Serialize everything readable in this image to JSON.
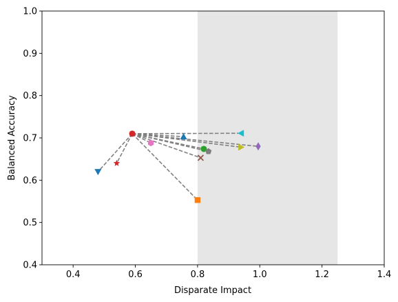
{
  "chart_data": {
    "type": "scatter",
    "title": "",
    "xlabel": "Disparate Impact",
    "ylabel": "Balanced Accuracy",
    "xlim": [
      0.3,
      1.4
    ],
    "ylim": [
      0.4,
      1.0
    ],
    "x_ticks": [
      0.4,
      0.6,
      0.8,
      1.0,
      1.2,
      1.4
    ],
    "x_tick_labels": [
      "0.4",
      "0.6",
      "0.8",
      "1.0",
      "1.2",
      "1.4"
    ],
    "y_ticks": [
      0.4,
      0.5,
      0.6,
      0.7,
      0.8,
      0.9,
      1.0
    ],
    "y_tick_labels": [
      "0.4",
      "0.5",
      "0.6",
      "0.7",
      "0.8",
      "0.9",
      "1.0"
    ],
    "grid": false,
    "legend": "none",
    "shaded_region": {
      "x": [
        0.8,
        1.25
      ],
      "color": "#e6e6e6"
    },
    "origin": {
      "x": 0.59,
      "y": 0.71,
      "color": "#d62728",
      "marker": "circle"
    },
    "connector_style": {
      "color": "#808080",
      "dash": "dashed"
    },
    "points": [
      {
        "x": 0.48,
        "y": 0.62,
        "marker": "triangle-down",
        "color": "#1f77b4"
      },
      {
        "x": 0.8,
        "y": 0.553,
        "marker": "square",
        "color": "#ff7f0e"
      },
      {
        "x": 0.82,
        "y": 0.674,
        "marker": "circle",
        "color": "#2ca02c"
      },
      {
        "x": 0.54,
        "y": 0.64,
        "marker": "star",
        "color": "#d62728"
      },
      {
        "x": 0.995,
        "y": 0.68,
        "marker": "thin-diamond",
        "color": "#9467bd"
      },
      {
        "x": 0.81,
        "y": 0.653,
        "marker": "x",
        "color": "#8c564b"
      },
      {
        "x": 0.65,
        "y": 0.688,
        "marker": "hexagon",
        "color": "#e377c2"
      },
      {
        "x": 0.835,
        "y": 0.668,
        "marker": "pentagon",
        "color": "#7f7f7f"
      },
      {
        "x": 0.94,
        "y": 0.678,
        "marker": "triangle-right",
        "color": "#bcbd22"
      },
      {
        "x": 0.94,
        "y": 0.711,
        "marker": "triangle-left",
        "color": "#17becf"
      },
      {
        "x": 0.755,
        "y": 0.703,
        "marker": "triangle-up",
        "color": "#1f77b4"
      }
    ]
  }
}
